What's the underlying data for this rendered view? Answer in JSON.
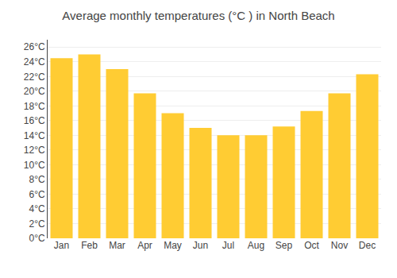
{
  "chart_data": {
    "type": "bar",
    "title": "Average monthly temperatures (°C ) in North Beach",
    "categories": [
      "Jan",
      "Feb",
      "Mar",
      "Apr",
      "May",
      "Jun",
      "Jul",
      "Aug",
      "Sep",
      "Oct",
      "Nov",
      "Dec"
    ],
    "values": [
      24.5,
      25.0,
      23.0,
      19.7,
      17.0,
      15.0,
      14.0,
      14.0,
      15.2,
      17.3,
      19.7,
      22.3
    ],
    "color": "#FFCC33",
    "ylim": [
      0,
      27
    ],
    "yticks": [
      {
        "value": 0,
        "label": "0°C"
      },
      {
        "value": 2,
        "label": "2°C"
      },
      {
        "value": 4,
        "label": "4°C"
      },
      {
        "value": 6,
        "label": "6°C"
      },
      {
        "value": 8,
        "label": "8°C"
      },
      {
        "value": 10,
        "label": "10°C"
      },
      {
        "value": 12,
        "label": "12°C"
      },
      {
        "value": 14,
        "label": "14°C"
      },
      {
        "value": 16,
        "label": "16°C"
      },
      {
        "value": 18,
        "label": "18°C"
      },
      {
        "value": 20,
        "label": "20°C"
      },
      {
        "value": 22,
        "label": "22°C"
      },
      {
        "value": 24,
        "label": "24°C"
      },
      {
        "value": 26,
        "label": "26°C"
      }
    ],
    "grid": true
  }
}
